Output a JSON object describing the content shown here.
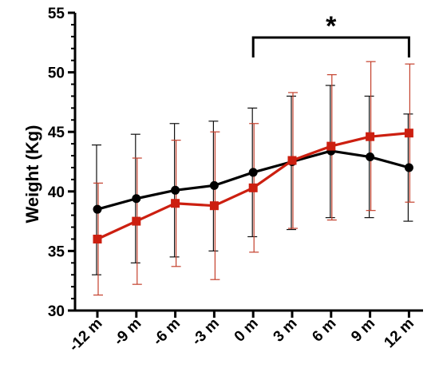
{
  "chart_data": {
    "type": "line",
    "x": [
      "-12 m",
      "-9 m",
      "-6 m",
      "-3 m",
      "0 m",
      "3 m",
      "6 m",
      "9 m",
      "12 m"
    ],
    "ylabel": "Weight (Kg)",
    "xlabel": "",
    "ylim": [
      30,
      55
    ],
    "yticks": [
      30,
      35,
      40,
      45,
      50,
      55
    ],
    "grid": false,
    "series": [
      {
        "color": "#000000",
        "marker": "circle",
        "values": [
          38.5,
          39.4,
          40.1,
          40.5,
          41.6,
          42.5,
          43.4,
          42.9,
          42.0
        ],
        "err_low": [
          33.0,
          34.0,
          34.5,
          35.0,
          36.2,
          36.8,
          37.8,
          37.8,
          37.5
        ],
        "err_high": [
          43.9,
          44.8,
          45.7,
          45.9,
          47.0,
          48.0,
          48.9,
          48.0,
          46.5
        ]
      },
      {
        "color": "#cc1f10",
        "marker": "square",
        "values": [
          36.0,
          37.5,
          39.0,
          38.8,
          40.3,
          42.6,
          43.8,
          44.6,
          44.9
        ],
        "err_low": [
          31.3,
          32.2,
          33.7,
          32.6,
          34.9,
          36.9,
          37.6,
          38.4,
          39.1
        ],
        "err_high": [
          40.7,
          42.8,
          44.3,
          45.0,
          45.7,
          48.3,
          49.8,
          50.9,
          50.7
        ]
      }
    ],
    "annotation": {
      "text": "*",
      "from": "0 m",
      "to": "12 m"
    }
  }
}
